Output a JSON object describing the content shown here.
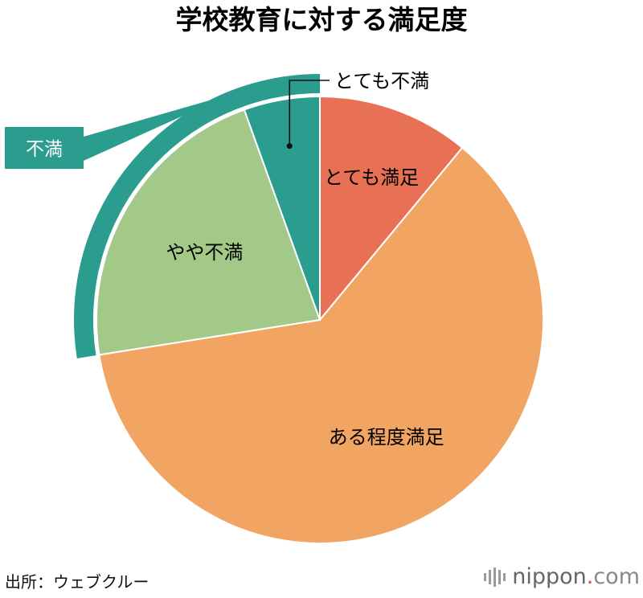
{
  "title": "学校教育に対する満足度",
  "chart_data": {
    "type": "pie",
    "title": "学校教育に対する満足度",
    "start": "12 o'clock",
    "direction": "clockwise",
    "slices": [
      {
        "label": "とても満足",
        "value": 11.0,
        "color": "#e87155",
        "label_position": "inside"
      },
      {
        "label": "ある程度満足",
        "value": 61.5,
        "color": "#f2a563",
        "label_position": "inside"
      },
      {
        "label": "やや不満",
        "value": 22.0,
        "color": "#a3c988",
        "label_position": "inside"
      },
      {
        "label": "とても不満",
        "value": 5.5,
        "color": "#2a9d8f",
        "label_position": "callout"
      }
    ],
    "group": {
      "label": "不満",
      "members": [
        "やや不満",
        "とても不満"
      ],
      "color": "#2a9d8f"
    }
  },
  "source": "出所：ウェブクルー",
  "logo": {
    "brand": "nippon",
    "dot": ".",
    "tld": "com"
  }
}
